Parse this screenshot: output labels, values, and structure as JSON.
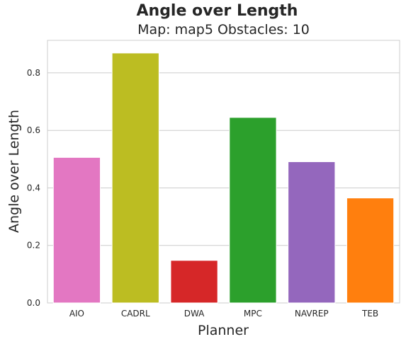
{
  "figure": {
    "suptitle": "Angle over Length",
    "subtitle": "Map: map5 Obstacles: 10"
  },
  "chart_data": {
    "type": "bar",
    "title": "Map: map5 Obstacles: 10",
    "xlabel": "Planner",
    "ylabel": "Angle over Length",
    "categories": [
      "AIO",
      "CADRL",
      "DWA",
      "MPC",
      "NAVREP",
      "TEB"
    ],
    "values": [
      0.506,
      0.869,
      0.148,
      0.645,
      0.491,
      0.365
    ],
    "colors": [
      "#e377c2",
      "#bcbd22",
      "#d62728",
      "#2ca02c",
      "#9467bd",
      "#ff7f0e"
    ],
    "ylim": [
      0,
      0.913
    ],
    "yticks": [
      0.0,
      0.2,
      0.4,
      0.6,
      0.8
    ],
    "ytick_labels": [
      "0.0",
      "0.2",
      "0.4",
      "0.6",
      "0.8"
    ],
    "grid": "horizontal",
    "legend": "none"
  }
}
